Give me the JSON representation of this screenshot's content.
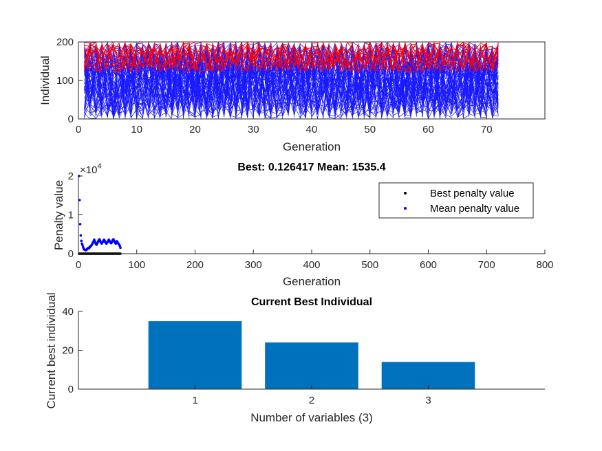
{
  "chart_data": [
    {
      "type": "line",
      "title": "",
      "xlabel": "Generation",
      "ylabel": "Individual",
      "xlim": [
        0,
        80
      ],
      "ylim": [
        0,
        200
      ],
      "xticks": [
        "0",
        "10",
        "20",
        "30",
        "40",
        "50",
        "60",
        "70"
      ],
      "yticks": [
        "0",
        "100",
        "200"
      ],
      "generations": 72,
      "series": [
        {
          "role": "genealogy-lines",
          "color": "#0000ff"
        },
        {
          "role": "elite-lines",
          "color": "#ff0000"
        }
      ]
    },
    {
      "type": "scatter",
      "title": "Best: 0.126417 Mean: 1535.4",
      "xlabel": "Generation",
      "ylabel": "Penalty value",
      "xlim": [
        0,
        800
      ],
      "ylim": [
        0,
        20000
      ],
      "xticks": [
        "0",
        "100",
        "200",
        "300",
        "400",
        "500",
        "600",
        "700",
        "800"
      ],
      "yticks": [
        "0",
        "1",
        "2"
      ],
      "y_exponent_base": "×10",
      "y_exponent_power": "4",
      "legend_location": "top-right",
      "series": [
        {
          "name": "Best penalty value",
          "color": "#000000",
          "x": [
            1,
            2,
            3,
            4,
            5,
            6,
            7,
            8,
            9,
            10,
            11,
            12,
            13,
            14,
            15,
            16,
            17,
            18,
            19,
            20,
            21,
            22,
            23,
            24,
            25,
            26,
            27,
            28,
            29,
            30,
            31,
            32,
            33,
            34,
            35,
            36,
            37,
            38,
            39,
            40,
            41,
            42,
            43,
            44,
            45,
            46,
            47,
            48,
            49,
            50,
            51,
            52,
            53,
            54,
            55,
            56,
            57,
            58,
            59,
            60,
            61,
            62,
            63,
            64,
            65,
            66,
            67,
            68,
            69,
            70,
            71,
            72
          ],
          "y": [
            0.5,
            0.4,
            0.3,
            0.3,
            0.2,
            0.2,
            0.2,
            0.2,
            0.2,
            0.2,
            0.2,
            0.2,
            0.2,
            0.2,
            0.2,
            0.2,
            0.2,
            0.2,
            0.2,
            0.2,
            0.2,
            0.2,
            0.2,
            0.2,
            0.2,
            0.2,
            0.2,
            0.2,
            0.2,
            0.2,
            0.2,
            0.2,
            0.2,
            0.2,
            0.2,
            0.2,
            0.2,
            0.2,
            0.2,
            0.2,
            0.2,
            0.2,
            0.2,
            0.2,
            0.2,
            0.2,
            0.2,
            0.2,
            0.2,
            0.2,
            0.2,
            0.2,
            0.2,
            0.2,
            0.2,
            0.2,
            0.2,
            0.2,
            0.2,
            0.2,
            0.2,
            0.2,
            0.2,
            0.2,
            0.2,
            0.2,
            0.2,
            0.2,
            0.2,
            0.2,
            0.2,
            0.126417
          ]
        },
        {
          "name": "Mean penalty value",
          "color": "#0000ff",
          "x": [
            1,
            2,
            3,
            4,
            5,
            6,
            7,
            8,
            9,
            10,
            11,
            12,
            13,
            14,
            15,
            16,
            17,
            18,
            19,
            20,
            21,
            22,
            23,
            24,
            25,
            26,
            27,
            28,
            29,
            30,
            31,
            32,
            33,
            34,
            35,
            36,
            37,
            38,
            39,
            40,
            41,
            42,
            43,
            44,
            45,
            46,
            47,
            48,
            49,
            50,
            51,
            52,
            53,
            54,
            55,
            56,
            57,
            58,
            59,
            60,
            61,
            62,
            63,
            64,
            65,
            66,
            67,
            68,
            69,
            70,
            71,
            72
          ],
          "y": [
            20000,
            13800,
            7600,
            4700,
            3300,
            2600,
            2200,
            1700,
            1300,
            1100,
            1000,
            900,
            900,
            1000,
            1200,
            1300,
            1500,
            1400,
            1600,
            1800,
            2000,
            2100,
            2300,
            2600,
            2900,
            3200,
            3600,
            3300,
            2800,
            2500,
            2300,
            2600,
            2900,
            3200,
            3500,
            3700,
            3400,
            3000,
            2800,
            2600,
            2900,
            3100,
            3400,
            3600,
            3300,
            3000,
            2800,
            2600,
            2800,
            3000,
            3300,
            3600,
            3400,
            3100,
            2900,
            2700,
            2900,
            3200,
            3500,
            3700,
            3400,
            3100,
            2800,
            2600,
            2900,
            3200,
            3000,
            2700,
            2500,
            2300,
            2000,
            1535.4
          ]
        }
      ]
    },
    {
      "type": "bar",
      "title": "Current Best Individual",
      "xlabel": "Number of variables (3)",
      "ylabel": "Current best individual",
      "categories": [
        "1",
        "2",
        "3"
      ],
      "values": [
        35,
        24,
        14
      ],
      "ylim": [
        0,
        40
      ],
      "yticks": [
        "0",
        "20",
        "40"
      ],
      "color": "#0072bd"
    }
  ]
}
